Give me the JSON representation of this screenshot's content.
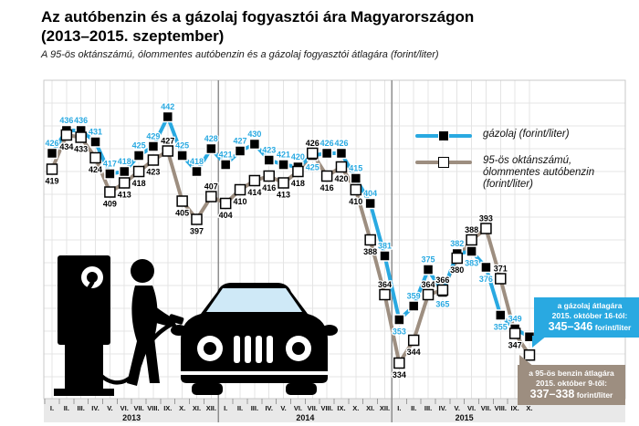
{
  "title_line1": "Az autóbenzin és a gázolaj fogyasztói ára Magyarországon",
  "title_line2": "(2013–2015. szeptember)",
  "subtitle": "A 95-ös oktánszámú, ólommentes autóbenzin és a gázolaj fogyasztói átlagára (forint/liter)",
  "legend": {
    "series1_label": "gázolaj (forint/liter)",
    "series2_line1": "95-ös oktánszámú,",
    "series2_line2": "ólommentes autóbenzin",
    "series2_line3": "(forint/liter)"
  },
  "callouts": {
    "gazolaj": {
      "line1": "a gázolaj átlagára",
      "line2": "2015. október 16-tól:",
      "value": "345–346",
      "unit": "forint/liter",
      "color": "#29a9e1"
    },
    "benzin": {
      "line1": "a 95-ös benzin átlagára",
      "line2": "2015. október 9-től:",
      "value": "337–338",
      "unit": "forint/liter",
      "color": "#9d8e80"
    }
  },
  "chart_data": {
    "type": "line",
    "title": "Az autóbenzin és a gázolaj fogyasztói ára Magyarországon (2013–2015. szeptember)",
    "xlabel": "",
    "ylabel": "forint/liter",
    "ylim": [
      318,
      458
    ],
    "grid": true,
    "legend_position": "top-right",
    "x_groups": [
      {
        "year": "2013",
        "months": [
          "I.",
          "II.",
          "III.",
          "IV.",
          "V.",
          "VI.",
          "VII.",
          "VIII.",
          "IX.",
          "X.",
          "XI.",
          "XII."
        ]
      },
      {
        "year": "2014",
        "months": [
          "I.",
          "II.",
          "III.",
          "IV.",
          "V.",
          "VI.",
          "VII.",
          "VIII.",
          "IX.",
          "X.",
          "XI.",
          "XII."
        ]
      },
      {
        "year": "2015",
        "months": [
          "I.",
          "II.",
          "III.",
          "IV.",
          "V.",
          "VI.",
          "VII.",
          "VIII.",
          "IX.",
          "X."
        ]
      }
    ],
    "series": [
      {
        "name": "gázolaj (forint/liter)",
        "color": "#29a9e1",
        "label_color": "#29a9e1",
        "marker": "black-filled-square",
        "values": [
          426,
          436,
          436,
          431,
          417,
          418,
          425,
          429,
          442,
          425,
          418,
          428,
          421,
          427,
          430,
          423,
          421,
          420,
          425,
          426,
          426,
          415,
          404,
          381,
          353,
          359,
          375,
          365,
          382,
          383,
          376,
          355,
          349,
          345.5
        ],
        "label_below_overrides": [
          24
        ],
        "october_note": "2015. október 16-tól: 345–346 forint/liter (callout, nincs számcímke)"
      },
      {
        "name": "95-ös oktánszámú, ólommentes autóbenzin (forint/liter)",
        "color": "#9d8e80",
        "label_color": "#000000",
        "marker": "white-open-square",
        "values": [
          419,
          434,
          433,
          424,
          409,
          413,
          418,
          423,
          427,
          405,
          397,
          407,
          404,
          410,
          414,
          416,
          413,
          418,
          426,
          416,
          420,
          410,
          388,
          364,
          334,
          344,
          364,
          366,
          380,
          388,
          393,
          371,
          347,
          337.5
        ],
        "label_above_overrides": [
          8,
          11,
          23,
          26
        ],
        "october_note": "2015. október 9-től: 337–338 forint/liter (callout, nincs számcímke)"
      }
    ],
    "hide_label_index": 33,
    "colors": {
      "grid": "#e4e4e4",
      "plot_border": "#c8c8c8",
      "year_divider": "#8f8f8f",
      "axis_strip_bg": "#e9e9e9"
    }
  }
}
